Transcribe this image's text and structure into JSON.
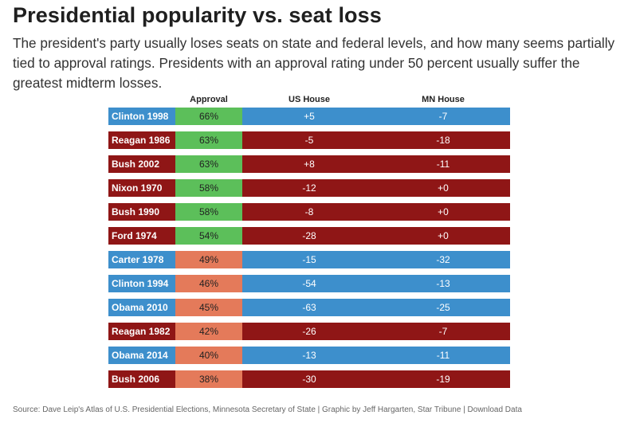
{
  "title": "Presidential popularity vs. seat loss",
  "subtitle": "The president's party usually loses seats on state and federal levels, and how many seems partially tied to approval ratings. Presidents with an approval rating under 50 percent usually suffer the greatest midterm losses.",
  "source": "Source: Dave Leip's Atlas of U.S. Presidential Elections, Minnesota Secretary of State | Graphic by Jeff Hargarten, Star Tribune | Download Data",
  "colors": {
    "democrat": "#3d8fcc",
    "republican": "#8f1616",
    "approval_high": "#5cbf5a",
    "approval_low": "#e47a5a"
  },
  "chart_data": {
    "type": "table",
    "columns": [
      "",
      "Approval",
      "US House",
      "MN House"
    ],
    "approval_threshold": 50,
    "rows": [
      {
        "president": "Clinton 1998",
        "party": "democrat",
        "approval": "66%",
        "us_house": "+5",
        "mn_house": "-7"
      },
      {
        "president": "Reagan 1986",
        "party": "republican",
        "approval": "63%",
        "us_house": "-5",
        "mn_house": "-18"
      },
      {
        "president": "Bush 2002",
        "party": "republican",
        "approval": "63%",
        "us_house": "+8",
        "mn_house": "-11"
      },
      {
        "president": "Nixon 1970",
        "party": "republican",
        "approval": "58%",
        "us_house": "-12",
        "mn_house": "+0"
      },
      {
        "president": "Bush 1990",
        "party": "republican",
        "approval": "58%",
        "us_house": "-8",
        "mn_house": "+0"
      },
      {
        "president": "Ford 1974",
        "party": "republican",
        "approval": "54%",
        "us_house": "-28",
        "mn_house": "+0"
      },
      {
        "president": "Carter 1978",
        "party": "democrat",
        "approval": "49%",
        "us_house": "-15",
        "mn_house": "-32"
      },
      {
        "president": "Clinton 1994",
        "party": "democrat",
        "approval": "46%",
        "us_house": "-54",
        "mn_house": "-13"
      },
      {
        "president": "Obama 2010",
        "party": "democrat",
        "approval": "45%",
        "us_house": "-63",
        "mn_house": "-25"
      },
      {
        "president": "Reagan 1982",
        "party": "republican",
        "approval": "42%",
        "us_house": "-26",
        "mn_house": "-7"
      },
      {
        "president": "Obama 2014",
        "party": "democrat",
        "approval": "40%",
        "us_house": "-13",
        "mn_house": "-11"
      },
      {
        "president": "Bush 2006",
        "party": "republican",
        "approval": "38%",
        "us_house": "-30",
        "mn_house": "-19"
      }
    ]
  }
}
